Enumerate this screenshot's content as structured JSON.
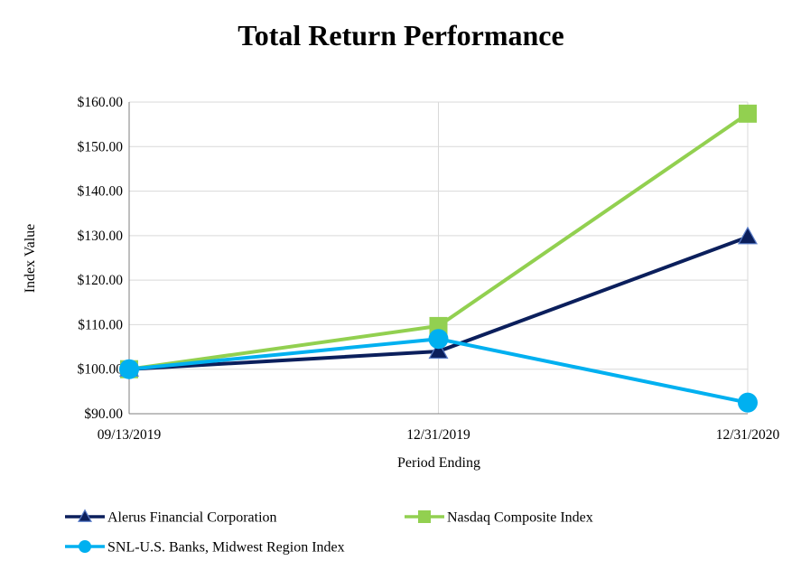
{
  "chart_data": {
    "type": "line",
    "title": "Total Return Performance",
    "xlabel": "Period Ending",
    "ylabel": "Index Value",
    "categories": [
      "09/13/2019",
      "12/31/2019",
      "12/31/2020"
    ],
    "ylim": [
      90,
      160
    ],
    "yticks": [
      "$90.00",
      "$100.00",
      "$110.00",
      "$120.00",
      "$130.00",
      "$140.00",
      "$150.00",
      "$160.00"
    ],
    "grid": true,
    "legend_position": "bottom",
    "series": [
      {
        "name": "Alerus Financial Corporation",
        "values": [
          100.0,
          104.0,
          129.7
        ],
        "color": "#0b1f5c",
        "marker": "triangle"
      },
      {
        "name": "Nasdaq Composite Index",
        "values": [
          100.0,
          109.7,
          157.4
        ],
        "color": "#92d050",
        "marker": "square"
      },
      {
        "name": "SNL-U.S. Banks, Midwest Region Index",
        "values": [
          100.0,
          106.8,
          92.5
        ],
        "color": "#00b0f0",
        "marker": "circle"
      }
    ]
  }
}
